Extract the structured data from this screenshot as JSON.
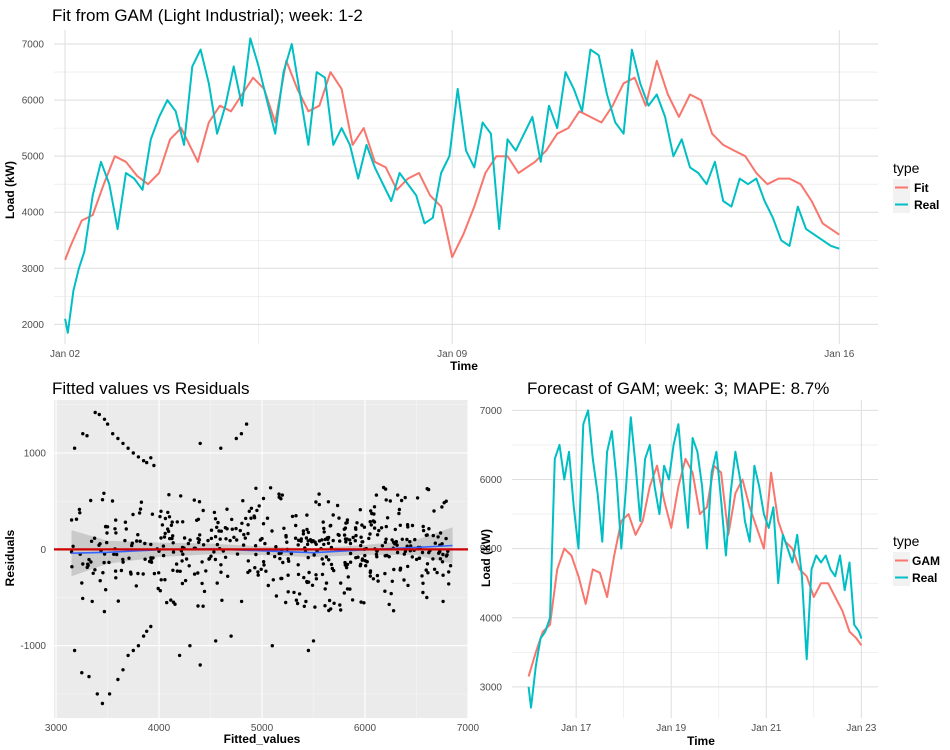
{
  "colors": {
    "fit": "#F8766D",
    "real": "#00BFC4",
    "gam": "#F8766D",
    "points": "#000000",
    "zero_line": "#CC0000",
    "smooth": "#3366FF",
    "panel_bg": "#EBEBEB",
    "grid": "#E6E6E6"
  },
  "chart_data": [
    {
      "id": "fit",
      "type": "line",
      "title": "Fit from GAM (Light Industrial); week: 1-2",
      "xlabel": "Time",
      "ylabel": "Load (kW)",
      "x_unit": "days from Jan 02",
      "xlim": [
        -0.2,
        14.7
      ],
      "ylim": [
        1650,
        7250
      ],
      "x_ticks": [
        {
          "value": 0,
          "label": "Jan 02"
        },
        {
          "value": 7,
          "label": "Jan 09"
        },
        {
          "value": 14,
          "label": "Jan 16"
        }
      ],
      "y_ticks": [
        2000,
        3000,
        4000,
        5000,
        6000,
        7000
      ],
      "grid": true,
      "legend": {
        "title": "type",
        "position": "right",
        "items": [
          {
            "label": "Fit",
            "color": "#F8766D"
          },
          {
            "label": "Real",
            "color": "#00BFC4"
          }
        ]
      },
      "series": [
        {
          "name": "Fit",
          "color": "#F8766D",
          "x": [
            0,
            0.1,
            0.3,
            0.5,
            0.7,
            0.9,
            1.1,
            1.3,
            1.5,
            1.7,
            1.9,
            2.1,
            2.4,
            2.6,
            2.8,
            3.0,
            3.2,
            3.4,
            3.6,
            3.8,
            4.0,
            4.2,
            4.4,
            4.6,
            4.8,
            5.0,
            5.2,
            5.4,
            5.6,
            5.8,
            6.0,
            6.2,
            6.4,
            6.6,
            6.8,
            7.0,
            7.2,
            7.4,
            7.6,
            7.8,
            8.0,
            8.2,
            8.5,
            8.7,
            8.9,
            9.1,
            9.3,
            9.5,
            9.7,
            9.9,
            10.1,
            10.3,
            10.5,
            10.7,
            10.9,
            11.1,
            11.3,
            11.5,
            11.7,
            11.9,
            12.1,
            12.3,
            12.5,
            12.7,
            12.9,
            13.1,
            13.3,
            13.5,
            13.7,
            14.0
          ],
          "y": [
            3150,
            3400,
            3850,
            3950,
            4500,
            5000,
            4900,
            4650,
            4500,
            4700,
            5300,
            5500,
            4900,
            5600,
            5900,
            5800,
            6100,
            6400,
            6200,
            5600,
            6700,
            6200,
            5800,
            5900,
            6500,
            6200,
            5200,
            5500,
            4900,
            4800,
            4400,
            4600,
            4700,
            4300,
            4100,
            3200,
            3600,
            4100,
            4700,
            5000,
            5000,
            4700,
            4900,
            5100,
            5400,
            5500,
            5800,
            5700,
            5600,
            5900,
            6300,
            6400,
            5900,
            6700,
            6100,
            5700,
            6100,
            6000,
            5400,
            5200,
            5100,
            5000,
            4700,
            4500,
            4600,
            4600,
            4500,
            4200,
            3800,
            3600
          ]
        },
        {
          "name": "Real",
          "color": "#00BFC4",
          "x": [
            0,
            0.05,
            0.15,
            0.25,
            0.35,
            0.5,
            0.65,
            0.8,
            0.95,
            1.1,
            1.25,
            1.4,
            1.55,
            1.7,
            1.85,
            2.0,
            2.15,
            2.3,
            2.45,
            2.6,
            2.75,
            2.9,
            3.05,
            3.2,
            3.35,
            3.5,
            3.65,
            3.8,
            3.95,
            4.1,
            4.25,
            4.4,
            4.55,
            4.7,
            4.85,
            5.0,
            5.15,
            5.3,
            5.45,
            5.6,
            5.75,
            5.9,
            6.05,
            6.2,
            6.35,
            6.5,
            6.65,
            6.8,
            6.95,
            7.1,
            7.25,
            7.4,
            7.55,
            7.7,
            7.85,
            8.0,
            8.15,
            8.3,
            8.45,
            8.6,
            8.75,
            8.9,
            9.05,
            9.2,
            9.35,
            9.5,
            9.65,
            9.8,
            9.95,
            10.1,
            10.25,
            10.4,
            10.55,
            10.7,
            10.85,
            11.0,
            11.15,
            11.3,
            11.45,
            11.6,
            11.75,
            11.9,
            12.05,
            12.2,
            12.35,
            12.5,
            12.65,
            12.8,
            12.95,
            13.1,
            13.25,
            13.4,
            13.55,
            13.7,
            13.85,
            14.0
          ],
          "y": [
            2100,
            1850,
            2600,
            3000,
            3300,
            4300,
            4900,
            4500,
            3700,
            4700,
            4600,
            4400,
            5300,
            5700,
            6000,
            5800,
            5200,
            6600,
            6900,
            6300,
            5400,
            5900,
            6600,
            5900,
            7100,
            6600,
            6000,
            5400,
            6500,
            7000,
            6100,
            5200,
            6500,
            6400,
            5200,
            5500,
            5200,
            4600,
            5200,
            4800,
            4500,
            4200,
            4700,
            4500,
            4300,
            3800,
            3900,
            4700,
            5000,
            6200,
            5100,
            4800,
            5600,
            5400,
            3700,
            5300,
            5100,
            5400,
            5700,
            4900,
            5900,
            5500,
            6500,
            6200,
            5800,
            6900,
            6800,
            6100,
            5600,
            5400,
            6900,
            6300,
            5900,
            6100,
            5700,
            5000,
            5300,
            4800,
            4700,
            4500,
            4900,
            4200,
            4100,
            4600,
            4500,
            4600,
            4200,
            3900,
            3500,
            3400,
            4100,
            3700,
            3600,
            3500,
            3400,
            3350
          ]
        }
      ]
    },
    {
      "id": "resid",
      "type": "scatter",
      "title": "Fitted values vs Residuals",
      "xlabel": "Fitted_values",
      "ylabel": "Residuals",
      "xlim": [
        2980,
        7000
      ],
      "ylim": [
        -1750,
        1550
      ],
      "x_ticks": [
        3000,
        4000,
        5000,
        6000,
        7000
      ],
      "y_ticks": [
        -1000,
        0,
        1000
      ],
      "grid": true,
      "background": "gray",
      "zero_line": {
        "y": 0,
        "color": "#CC0000"
      },
      "smooth": {
        "color": "#3366FF",
        "x": [
          3150,
          3500,
          4000,
          4500,
          5000,
          5500,
          6000,
          6500,
          6850
        ],
        "y": [
          -40,
          -30,
          -5,
          5,
          -15,
          -35,
          -5,
          20,
          40
        ],
        "band_x": [
          3150,
          3500,
          4000,
          4500,
          5000,
          5500,
          6000,
          6500,
          6850
        ],
        "band_lower": [
          -280,
          -150,
          -80,
          -50,
          -60,
          -80,
          -55,
          -60,
          -150
        ],
        "band_upper": [
          200,
          90,
          70,
          60,
          30,
          10,
          45,
          100,
          230
        ]
      },
      "points": {
        "seed": 7,
        "count": 520,
        "x_range": [
          3150,
          6850
        ],
        "y_sd": 280,
        "clusters": [
          {
            "x": [
              3180,
              3260,
              3300,
              3380,
              3420,
              3470,
              3500,
              3550,
              3600,
              3650,
              3700,
              3750,
              3800,
              3850,
              3880,
              3920,
              3950
            ],
            "y": [
              1050,
              1200,
              1180,
              1420,
              1400,
              1350,
              1300,
              1200,
              1150,
              1100,
              1050,
              1000,
              960,
              920,
              900,
              950,
              870
            ]
          },
          {
            "x": [
              3180,
              3250,
              3320,
              3400,
              3450,
              3520,
              3600,
              3650,
              3700,
              3750,
              3800,
              3850,
              3880,
              3920
            ],
            "y": [
              -1050,
              -1280,
              -1320,
              -1500,
              -1600,
              -1500,
              -1350,
              -1250,
              -1100,
              -1050,
              -1000,
              -900,
              -850,
              -800
            ]
          },
          {
            "x": [
              4400,
              4600,
              4750,
              4800,
              4850
            ],
            "y": [
              1100,
              1050,
              1150,
              1200,
              1300
            ]
          },
          {
            "x": [
              4200,
              4300,
              4400,
              4550,
              4700,
              5100,
              5450,
              5500,
              6600
            ],
            "y": [
              -1100,
              -1000,
              -1200,
              -950,
              -900,
              -1000,
              -1050,
              -950,
              -500
            ]
          }
        ]
      }
    },
    {
      "id": "forecast",
      "type": "line",
      "title": "Forecast of GAM; week: 3; MAPE: 8.7%",
      "xlabel": "Time",
      "ylabel": "Load (kW)",
      "x_unit": "days from Jan 16",
      "xlim": [
        -0.35,
        7.35
      ],
      "ylim": [
        2550,
        7150
      ],
      "x_ticks": [
        {
          "value": 1,
          "label": "Jan 17"
        },
        {
          "value": 3,
          "label": "Jan 19"
        },
        {
          "value": 5,
          "label": "Jan 21"
        },
        {
          "value": 7,
          "label": "Jan 23"
        }
      ],
      "y_ticks": [
        3000,
        4000,
        5000,
        6000,
        7000
      ],
      "grid": true,
      "legend": {
        "title": "type",
        "position": "right",
        "items": [
          {
            "label": "GAM",
            "color": "#F8766D"
          },
          {
            "label": "Real",
            "color": "#00BFC4"
          }
        ]
      },
      "series": [
        {
          "name": "GAM",
          "color": "#F8766D",
          "x": [
            0,
            0.15,
            0.3,
            0.45,
            0.6,
            0.75,
            0.9,
            1.05,
            1.2,
            1.35,
            1.5,
            1.65,
            1.8,
            1.95,
            2.1,
            2.25,
            2.4,
            2.55,
            2.7,
            2.85,
            3.0,
            3.15,
            3.3,
            3.45,
            3.6,
            3.75,
            3.9,
            4.05,
            4.2,
            4.35,
            4.5,
            4.65,
            4.8,
            4.95,
            5.1,
            5.25,
            5.4,
            5.55,
            5.7,
            5.85,
            6.0,
            6.15,
            6.3,
            6.45,
            6.6,
            6.75,
            6.9,
            7.0
          ],
          "y": [
            3150,
            3500,
            3800,
            3900,
            4700,
            5000,
            4900,
            4600,
            4200,
            4700,
            4650,
            4300,
            4900,
            5400,
            5500,
            5200,
            5400,
            5900,
            6200,
            5700,
            5300,
            5900,
            6300,
            6100,
            5500,
            5600,
            6200,
            6100,
            5200,
            5800,
            6000,
            5600,
            5300,
            5000,
            6100,
            5400,
            5100,
            5000,
            4700,
            4600,
            4300,
            4500,
            4500,
            4300,
            4100,
            3800,
            3700,
            3600
          ]
        },
        {
          "name": "Real",
          "color": "#00BFC4",
          "x": [
            0,
            0.05,
            0.15,
            0.25,
            0.35,
            0.45,
            0.55,
            0.65,
            0.75,
            0.85,
            0.95,
            1.05,
            1.15,
            1.25,
            1.35,
            1.45,
            1.55,
            1.65,
            1.75,
            1.85,
            1.95,
            2.05,
            2.15,
            2.25,
            2.35,
            2.45,
            2.55,
            2.65,
            2.75,
            2.85,
            2.95,
            3.05,
            3.15,
            3.25,
            3.35,
            3.45,
            3.55,
            3.65,
            3.75,
            3.85,
            3.95,
            4.05,
            4.15,
            4.25,
            4.35,
            4.45,
            4.55,
            4.65,
            4.75,
            4.85,
            4.95,
            5.05,
            5.15,
            5.25,
            5.35,
            5.45,
            5.55,
            5.65,
            5.75,
            5.85,
            5.95,
            6.05,
            6.15,
            6.25,
            6.35,
            6.45,
            6.55,
            6.65,
            6.75,
            6.85,
            6.95,
            7.0
          ],
          "y": [
            3000,
            2700,
            3300,
            3700,
            3800,
            4000,
            6300,
            6500,
            6000,
            6400,
            5600,
            5000,
            6800,
            7000,
            6300,
            5800,
            5100,
            6400,
            6700,
            6000,
            5000,
            5900,
            6900,
            6200,
            5400,
            6300,
            6500,
            5900,
            5500,
            6200,
            6000,
            6500,
            6800,
            6000,
            5300,
            6600,
            6400,
            5900,
            5000,
            6100,
            6400,
            5700,
            4900,
            5800,
            6400,
            6000,
            5400,
            5100,
            6200,
            5900,
            5500,
            5300,
            5600,
            4500,
            5200,
            5000,
            4800,
            5200,
            4600,
            3400,
            4700,
            4900,
            4800,
            4900,
            4700,
            4600,
            4900,
            4400,
            4800,
            3900,
            3800,
            3700
          ]
        }
      ]
    }
  ]
}
